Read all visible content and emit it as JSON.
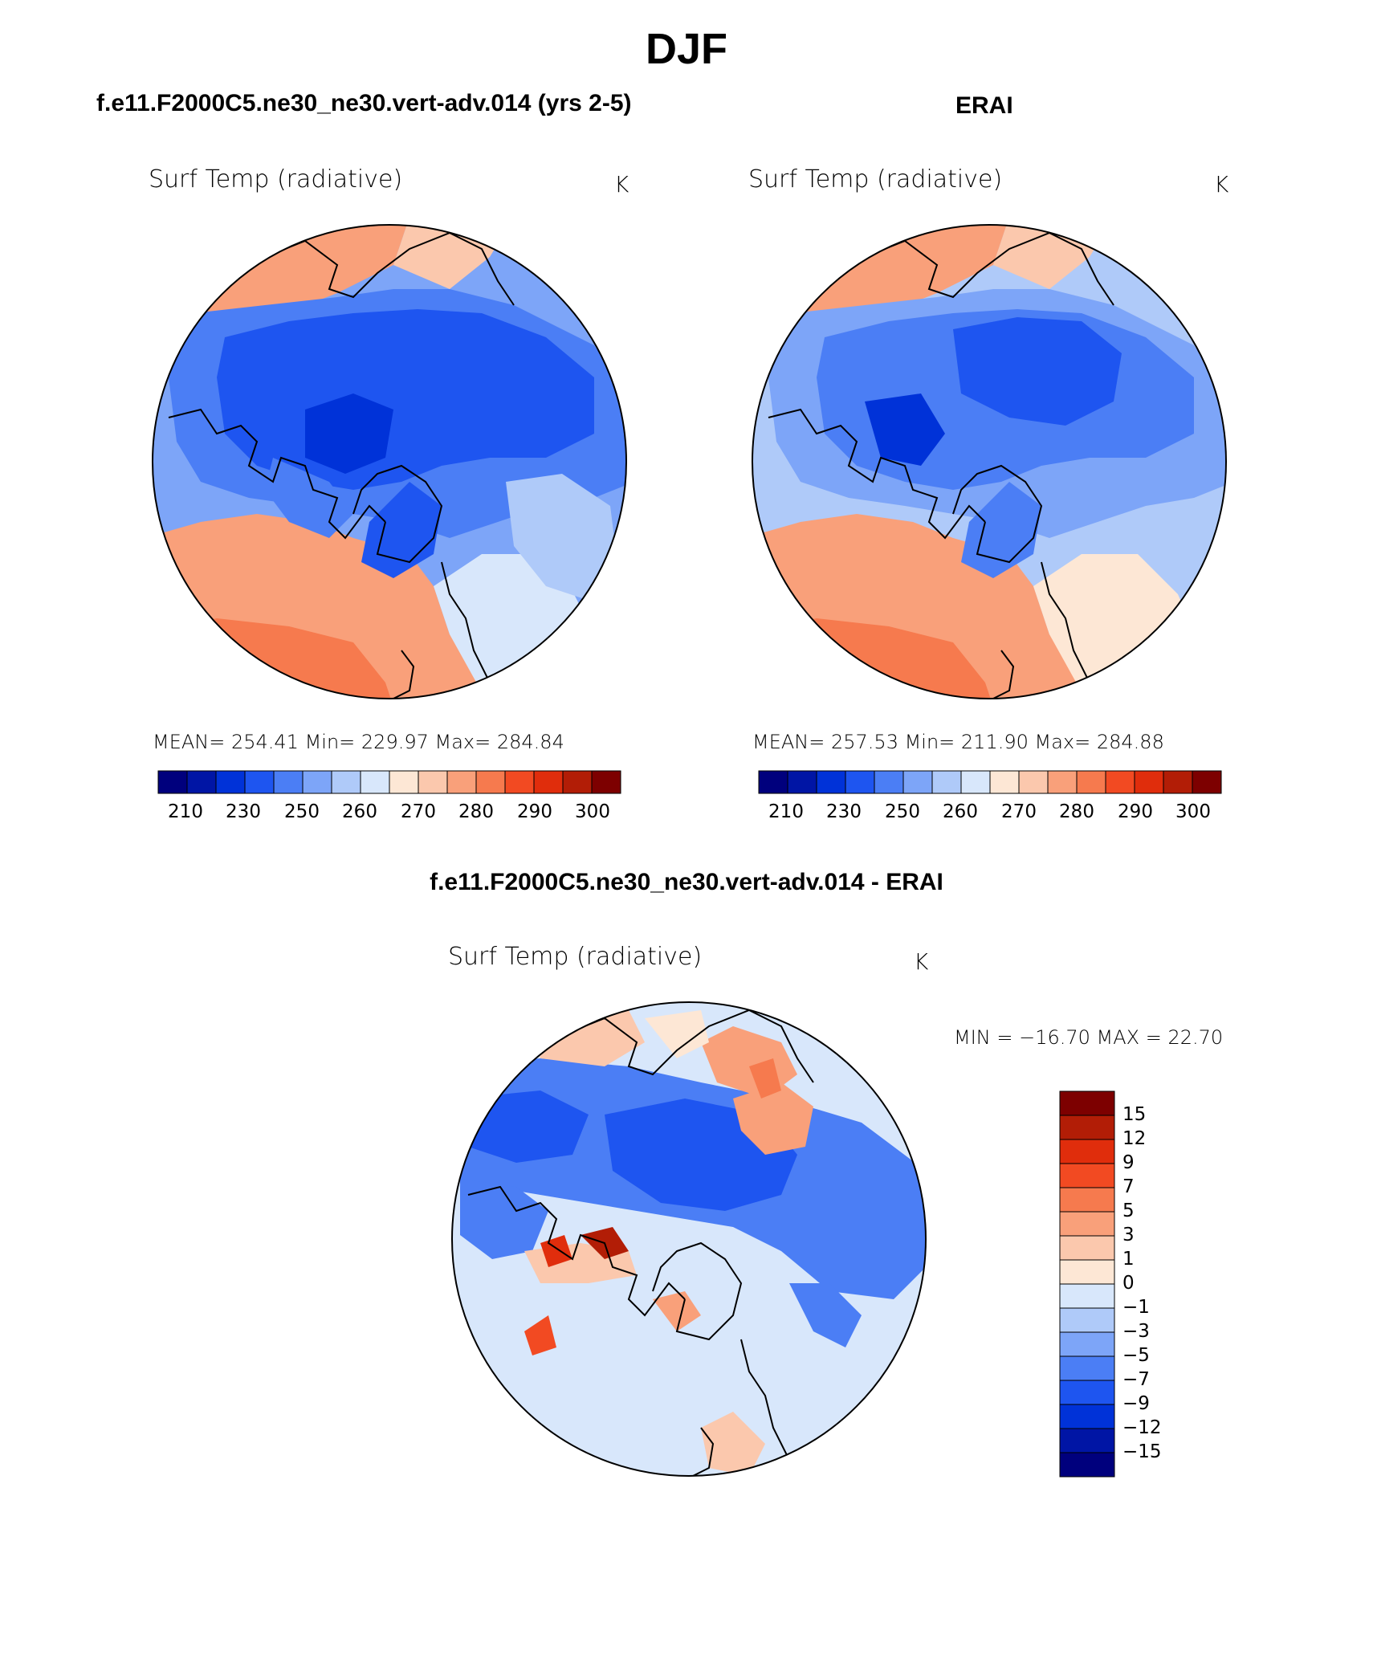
{
  "main_title": "DJF",
  "left_panel": {
    "case_title": "f.e11.F2000C5.ne30_ne30.vert-adv.014 (yrs 2-5)",
    "variable": "Surf Temp (radiative)",
    "units": "K",
    "stats_text": "MEAN= 254.41   Min= 229.97   Max= 284.84",
    "colorbar_labels": [
      "210",
      "230",
      "250",
      "260",
      "270",
      "280",
      "290",
      "300"
    ]
  },
  "right_panel": {
    "case_title": "ERAI",
    "variable": "Surf Temp (radiative)",
    "units": "K",
    "stats_text": "MEAN= 257.53   Min= 211.90   Max= 284.88",
    "colorbar_labels": [
      "210",
      "230",
      "250",
      "260",
      "270",
      "280",
      "290",
      "300"
    ]
  },
  "diff_panel": {
    "case_title": "f.e11.F2000C5.ne30_ne30.vert-adv.014 - ERAI",
    "variable": "Surf Temp (radiative)",
    "units": "K",
    "minmax_text": "MIN = −16.70 MAX =   22.70",
    "colorbar_labels": [
      "15",
      "12",
      "9",
      "7",
      "5",
      "3",
      "1",
      "0",
      "−1",
      "−3",
      "−5",
      "−7",
      "−9",
      "−12",
      "−15"
    ]
  },
  "colors": {
    "abs_palette": [
      "#00007d",
      "#0015a5",
      "#0032d8",
      "#1e55f0",
      "#4b7ef5",
      "#7da5f8",
      "#afcaf9",
      "#d8e7fb",
      "#fde7d5",
      "#fbc8ad",
      "#f9a07a",
      "#f67a4e",
      "#f24a22",
      "#e02d0c",
      "#b21d06",
      "#7d0000"
    ],
    "diff_palette": [
      "#7d0000",
      "#b21d06",
      "#e02d0c",
      "#f24a22",
      "#f67a4e",
      "#f9a07a",
      "#fbc8ad",
      "#fde7d5",
      "#d8e7fb",
      "#afcaf9",
      "#7da5f8",
      "#4b7ef5",
      "#1e55f0",
      "#0032d8",
      "#0015a5",
      "#00007d"
    ]
  }
}
